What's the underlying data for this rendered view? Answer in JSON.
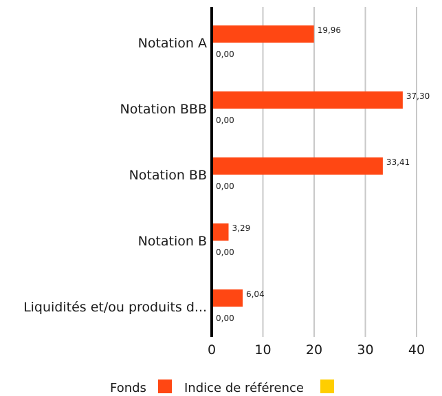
{
  "chart_data": {
    "type": "bar",
    "orientation": "horizontal",
    "categories": [
      "Notation A",
      "Notation BBB",
      "Notation BB",
      "Notation B",
      "Liquidités et/ou produits d..."
    ],
    "series": [
      {
        "name": "Fonds",
        "color": "#ff4713",
        "values": [
          19.96,
          37.3,
          33.41,
          3.29,
          6.04
        ],
        "labels": [
          "19,96",
          "37,30",
          "33,41",
          "3,29",
          "6,04"
        ]
      },
      {
        "name": "Indice de référence",
        "color": "#ffce00",
        "values": [
          0.0,
          0.0,
          0.0,
          0.0,
          0.0
        ],
        "labels": [
          "0,00",
          "0,00",
          "0,00",
          "0,00",
          "0,00"
        ]
      }
    ],
    "xlim": [
      0,
      40
    ],
    "x_ticks": [
      "0",
      "10",
      "20",
      "30",
      "40"
    ],
    "x_tick_values": [
      0,
      10,
      20,
      30,
      40
    ],
    "grid": true,
    "legend_position": "bottom-center",
    "colors": {
      "grid": "#c8c8c8",
      "axis": "#000000",
      "text": "#1a1a1a"
    }
  }
}
